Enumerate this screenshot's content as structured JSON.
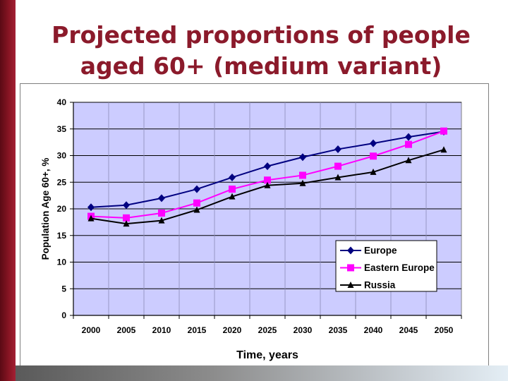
{
  "slide": {
    "title_line1": "Projected proportions of people",
    "title_line2": "aged 60+ (medium variant)"
  },
  "chart_data": {
    "type": "line",
    "title": "Projected proportions of people aged 60+ (medium variant)",
    "xlabel": "Time, years",
    "ylabel": "Population Age 60+, %",
    "categories": [
      "2000",
      "2005",
      "2010",
      "2015",
      "2020",
      "2025",
      "2030",
      "2035",
      "2040",
      "2045",
      "2050"
    ],
    "ylim": [
      0,
      40
    ],
    "yticks": [
      0,
      5,
      10,
      15,
      20,
      25,
      30,
      35,
      40
    ],
    "grid": true,
    "plot_background": "#ccccff",
    "legend_position": "bottom-right",
    "series": [
      {
        "name": "Europe",
        "color": "#000080",
        "marker": "diamond",
        "values": [
          20.3,
          20.7,
          22.0,
          23.7,
          25.9,
          28.0,
          29.7,
          31.2,
          32.3,
          33.5,
          34.5
        ]
      },
      {
        "name": "Eastern Europe",
        "color": "#ff00ff",
        "marker": "square",
        "values": [
          18.6,
          18.3,
          19.2,
          21.1,
          23.7,
          25.4,
          26.3,
          28.0,
          29.9,
          32.1,
          34.6
        ]
      },
      {
        "name": "Russia",
        "color": "#000000",
        "marker": "triangle",
        "values": [
          18.2,
          17.2,
          17.8,
          19.8,
          22.3,
          24.4,
          24.8,
          25.9,
          26.9,
          29.1,
          31.1
        ]
      }
    ]
  }
}
